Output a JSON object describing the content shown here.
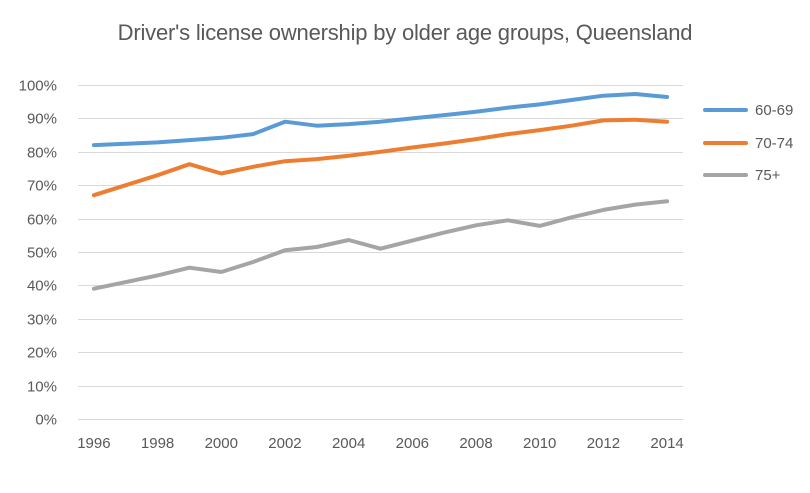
{
  "chart_data": {
    "type": "line",
    "title": "Driver's license ownership by older age groups, Queensland",
    "xlabel": "",
    "ylabel": "",
    "x": [
      1996,
      1997,
      1998,
      1999,
      2000,
      2001,
      2002,
      2003,
      2004,
      2005,
      2006,
      2007,
      2008,
      2009,
      2010,
      2011,
      2012,
      2013,
      2014
    ],
    "x_tick_labels": [
      "1996",
      "1998",
      "2000",
      "2002",
      "2004",
      "2006",
      "2008",
      "2010",
      "2012",
      "2014"
    ],
    "y_tick_labels": [
      "0%",
      "10%",
      "20%",
      "30%",
      "40%",
      "50%",
      "60%",
      "70%",
      "80%",
      "90%",
      "100%"
    ],
    "ylim": [
      0,
      100
    ],
    "grid": "horizontal",
    "legend_position": "right",
    "series": [
      {
        "name": "60-69",
        "color": "#5B9BD5",
        "values": [
          82,
          82.4,
          82.8,
          83.5,
          84.2,
          85.3,
          89,
          87.8,
          88.3,
          89,
          90,
          91,
          92,
          93.2,
          94.2,
          95.5,
          96.8,
          97.3,
          96.4
        ]
      },
      {
        "name": "70-74",
        "color": "#ED7D31",
        "values": [
          67,
          70,
          73,
          76.3,
          73.5,
          75.5,
          77.2,
          77.8,
          78.8,
          80,
          81.3,
          82.5,
          83.8,
          85.3,
          86.5,
          87.8,
          89.4,
          89.6,
          89
        ]
      },
      {
        "name": "75+",
        "color": "#A5A5A5",
        "values": [
          39,
          41,
          43,
          45.3,
          44,
          47,
          50.5,
          51.5,
          53.6,
          51,
          53.4,
          55.8,
          58,
          59.5,
          57.8,
          60.4,
          62.6,
          64.2,
          65.2
        ]
      }
    ]
  },
  "colors": {
    "background": "#FFFFFF",
    "gridline": "#D9D9D9",
    "axis_text": "#595959",
    "title_text": "#595959"
  }
}
